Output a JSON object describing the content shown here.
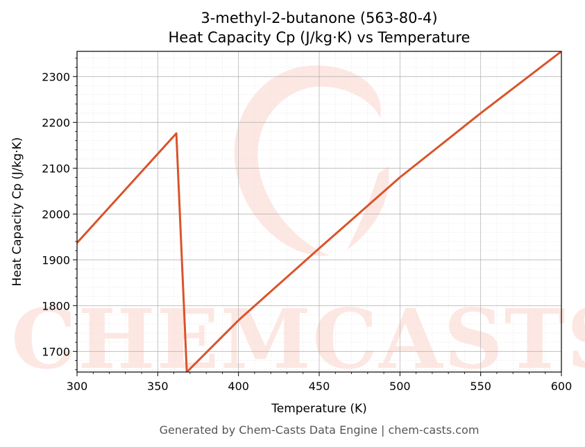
{
  "chart_data": {
    "type": "line",
    "title": "3-methyl-2-butanone (563-80-4)",
    "subtitle": "Heat Capacity Cp (J/kg·K) vs Temperature",
    "xlabel": "Temperature (K)",
    "ylabel": "Heat Capacity Cp (J/kg·K)",
    "xlim": [
      300,
      600
    ],
    "ylim": [
      1655,
      2355
    ],
    "xticks": [
      300,
      350,
      400,
      450,
      500,
      550,
      600
    ],
    "yticks": [
      1700,
      1800,
      1900,
      2000,
      2100,
      2200,
      2300
    ],
    "grid": true,
    "series": [
      {
        "x": [
          300,
          361.5,
          368,
          400,
          450,
          500,
          550,
          600
        ],
        "y": [
          1937,
          2176,
          1655,
          1768,
          1925,
          2080,
          2220,
          2355
        ]
      }
    ],
    "line_color": "#d9532a"
  },
  "watermark": {
    "text": "CHEMCASTS",
    "color": "#fde3dd"
  },
  "footer": "Generated by Chem-Casts Data Engine | chem-casts.com"
}
